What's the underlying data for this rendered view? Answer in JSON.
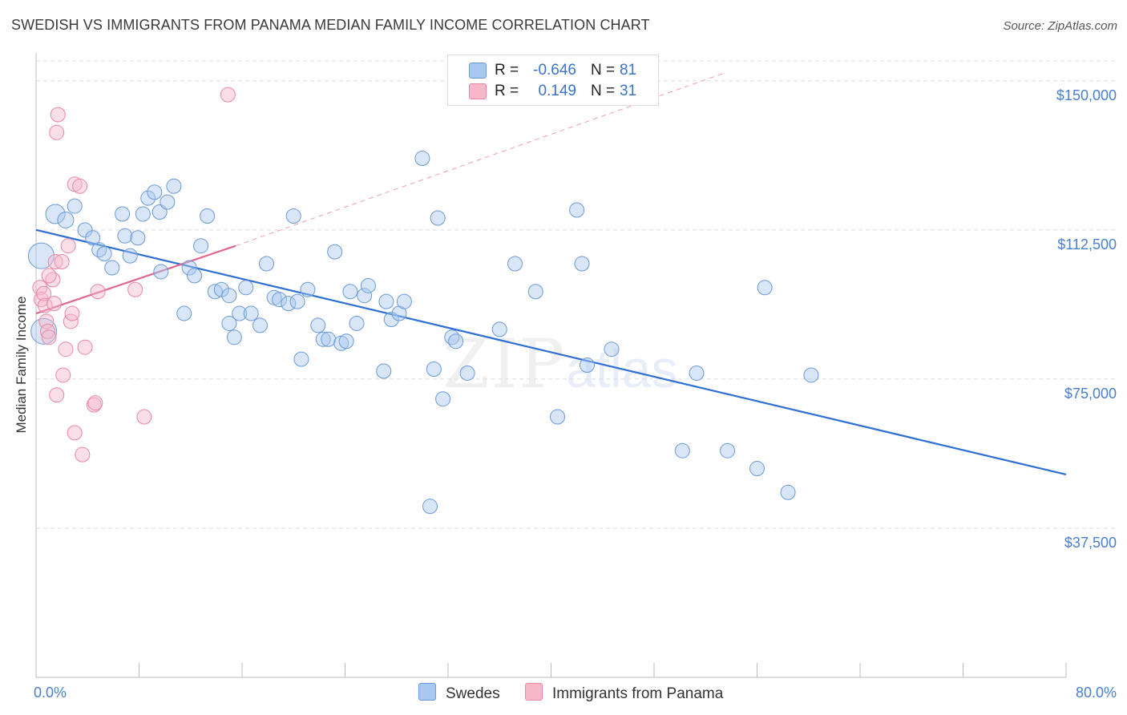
{
  "title": "SWEDISH VS IMMIGRANTS FROM PANAMA MEDIAN FAMILY INCOME CORRELATION CHART",
  "source": "Source: ZipAtlas.com",
  "watermark": {
    "zip": "ZIP",
    "atlas": "atlas"
  },
  "legend": {
    "rows": [
      {
        "r_label": "R =",
        "r_value": "-0.646",
        "n_label": "N =",
        "n_value": "81",
        "color": "#a9c8f0"
      },
      {
        "r_label": "R =",
        "r_value": "0.149",
        "n_label": "N =",
        "n_value": "31",
        "color": "#f6b7c9"
      }
    ]
  },
  "bottom_legend": [
    {
      "label": "Swedes",
      "color": "#a9c8f0"
    },
    {
      "label": "Immigrants from Panama",
      "color": "#f6b7c9"
    }
  ],
  "chart_data": {
    "type": "scatter",
    "title": "SWEDISH VS IMMIGRANTS FROM PANAMA MEDIAN FAMILY INCOME CORRELATION CHART",
    "xlabel": "",
    "ylabel": "Median Family Income",
    "xlim": [
      0,
      80
    ],
    "ylim": [
      0,
      155000
    ],
    "x_tick_labels": [
      "0.0%",
      "80.0%"
    ],
    "y_ticks": [
      {
        "value": 37500,
        "label": "$37,500"
      },
      {
        "value": 75000,
        "label": "$75,000"
      },
      {
        "value": 112500,
        "label": "$112,500"
      },
      {
        "value": 150000,
        "label": "$150,000"
      }
    ],
    "grid": true,
    "series": [
      {
        "name": "Swedes",
        "color": "#a9c8f0",
        "stroke": "#6a9ad8",
        "trend": {
          "x0": 0,
          "y0": 112500,
          "x1": 80,
          "y1": 51000,
          "color": "#2e6fd2"
        },
        "points": [
          [
            0.4,
            106000,
            16
          ],
          [
            0.6,
            87000,
            16
          ],
          [
            1.5,
            116500,
            12
          ],
          [
            2.3,
            115000,
            10
          ],
          [
            3.0,
            118500,
            9
          ],
          [
            3.8,
            112500,
            9
          ],
          [
            4.4,
            110500,
            9
          ],
          [
            4.9,
            107500,
            9
          ],
          [
            5.3,
            106500,
            9
          ],
          [
            5.9,
            103000,
            9
          ],
          [
            6.7,
            116500,
            9
          ],
          [
            6.9,
            111000,
            9
          ],
          [
            7.3,
            106000,
            9
          ],
          [
            7.9,
            110500,
            9
          ],
          [
            8.3,
            116500,
            9
          ],
          [
            8.7,
            120500,
            9
          ],
          [
            9.2,
            122000,
            9
          ],
          [
            9.6,
            117000,
            9
          ],
          [
            10.2,
            119500,
            9
          ],
          [
            10.7,
            123500,
            9
          ],
          [
            11.5,
            91500,
            9
          ],
          [
            11.9,
            103000,
            9
          ],
          [
            12.3,
            101000,
            9
          ],
          [
            12.8,
            108500,
            9
          ],
          [
            13.3,
            116000,
            9
          ],
          [
            13.9,
            97000,
            9
          ],
          [
            14.4,
            97500,
            9
          ],
          [
            15.0,
            89000,
            9
          ],
          [
            15.4,
            85500,
            9
          ],
          [
            15.8,
            91500,
            9
          ],
          [
            16.3,
            98000,
            9
          ],
          [
            16.7,
            91500,
            9
          ],
          [
            17.4,
            88500,
            9
          ],
          [
            17.9,
            104000,
            9
          ],
          [
            18.5,
            95500,
            9
          ],
          [
            18.9,
            95000,
            9
          ],
          [
            19.6,
            94000,
            9
          ],
          [
            20.0,
            116000,
            9
          ],
          [
            20.6,
            80000,
            9
          ],
          [
            21.1,
            97500,
            9
          ],
          [
            21.9,
            88500,
            9
          ],
          [
            22.3,
            85000,
            9
          ],
          [
            22.7,
            85000,
            9
          ],
          [
            23.2,
            107000,
            9
          ],
          [
            23.7,
            84000,
            9
          ],
          [
            24.4,
            97000,
            9
          ],
          [
            24.9,
            89000,
            9
          ],
          [
            25.5,
            96000,
            9
          ],
          [
            25.8,
            98500,
            9
          ],
          [
            27.0,
            77000,
            9
          ],
          [
            27.2,
            94500,
            9
          ],
          [
            27.6,
            90000,
            9
          ],
          [
            28.2,
            91500,
            9
          ],
          [
            28.6,
            94500,
            9
          ],
          [
            30.0,
            130500,
            9
          ],
          [
            30.6,
            43000,
            9
          ],
          [
            30.9,
            77500,
            9
          ],
          [
            31.2,
            115500,
            9
          ],
          [
            31.6,
            70000,
            9
          ],
          [
            32.3,
            85500,
            9
          ],
          [
            32.6,
            84500,
            9
          ],
          [
            33.5,
            76500,
            9
          ],
          [
            36.0,
            87500,
            9
          ],
          [
            37.2,
            104000,
            9
          ],
          [
            38.8,
            97000,
            9
          ],
          [
            40.5,
            65500,
            9
          ],
          [
            42.0,
            117500,
            9
          ],
          [
            42.4,
            104000,
            9
          ],
          [
            42.8,
            78500,
            9
          ],
          [
            44.7,
            82500,
            9
          ],
          [
            50.2,
            57000,
            9
          ],
          [
            51.3,
            76500,
            9
          ],
          [
            53.7,
            57000,
            9
          ],
          [
            56.0,
            52500,
            9
          ],
          [
            56.6,
            98000,
            9
          ],
          [
            58.4,
            46500,
            9
          ],
          [
            60.2,
            76000,
            9
          ],
          [
            20.3,
            94500,
            9
          ],
          [
            15.0,
            96000,
            9
          ],
          [
            24.1,
            84500,
            9
          ],
          [
            9.7,
            102000,
            9
          ]
        ]
      },
      {
        "name": "Immigrants from Panama",
        "color": "#f6b7c9",
        "stroke": "#e987a6",
        "trend": {
          "x0": 0,
          "y0": 91500,
          "x1": 15.5,
          "y1": 108500,
          "color": "#e0668f"
        },
        "trend_ext": {
          "x0": 15.5,
          "y0": 108500,
          "x1": 53.5,
          "y1": 152000,
          "color": "#e8a0b8"
        },
        "points": [
          [
            0.3,
            98000,
            9
          ],
          [
            0.4,
            95000,
            9
          ],
          [
            0.6,
            96500,
            9
          ],
          [
            0.7,
            93500,
            9
          ],
          [
            0.8,
            89500,
            9
          ],
          [
            0.9,
            87000,
            9
          ],
          [
            1.0,
            85500,
            9
          ],
          [
            1.3,
            100000,
            9
          ],
          [
            1.4,
            94000,
            9
          ],
          [
            1.5,
            104500,
            9
          ],
          [
            1.6,
            71000,
            9
          ],
          [
            1.6,
            137000,
            9
          ],
          [
            1.7,
            141500,
            9
          ],
          [
            2.0,
            104500,
            9
          ],
          [
            2.1,
            76000,
            9
          ],
          [
            2.3,
            82500,
            9
          ],
          [
            2.5,
            108500,
            9
          ],
          [
            2.7,
            89500,
            9
          ],
          [
            2.8,
            91500,
            9
          ],
          [
            3.0,
            61500,
            9
          ],
          [
            3.0,
            124000,
            9
          ],
          [
            3.4,
            123500,
            9
          ],
          [
            3.6,
            56000,
            9
          ],
          [
            3.8,
            83000,
            9
          ],
          [
            4.5,
            68500,
            9
          ],
          [
            4.6,
            69000,
            9
          ],
          [
            4.8,
            97000,
            9
          ],
          [
            7.7,
            97500,
            9
          ],
          [
            8.4,
            65500,
            9
          ],
          [
            14.9,
            146500,
            9
          ],
          [
            1.0,
            101000,
            9
          ]
        ]
      }
    ]
  }
}
